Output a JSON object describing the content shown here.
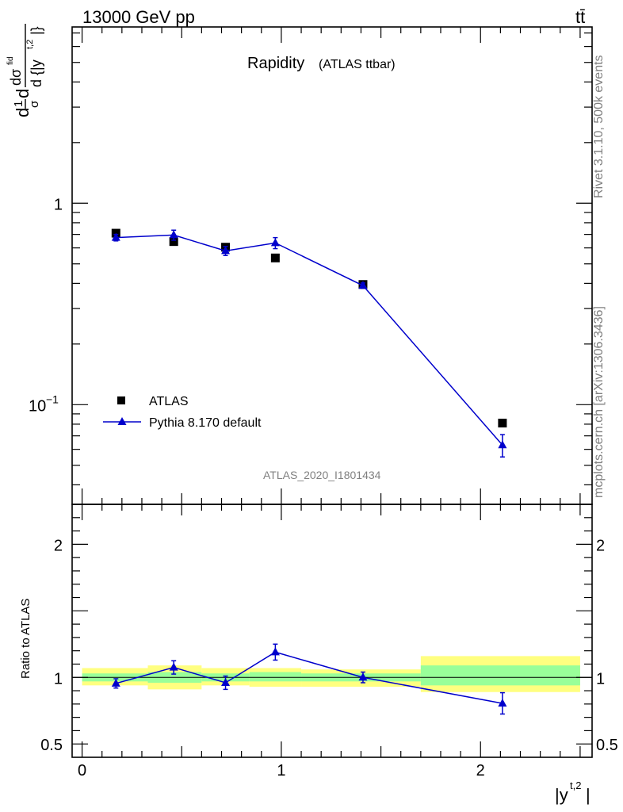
{
  "header": {
    "energy_label": "13000 GeV pp",
    "process_label": "tt̄"
  },
  "side_labels": {
    "rivet": "Rivet 3.1.10,  500k events",
    "url": "mcplots.cern.ch [arXiv:1306.3436]"
  },
  "colors": {
    "mc": "#0000cc",
    "band_outer": "#ffff80",
    "band_inner": "#99ff99",
    "data": "#000000",
    "grey_text": "#808080"
  },
  "chart_data": [
    {
      "type": "scatter",
      "panel": "main",
      "title": "Rapidity",
      "subtitle": "(ATLAS ttbar)",
      "ylabel_parts": [
        "d",
        "1",
        "σ",
        "d",
        "dσ",
        "fid",
        "d {|y",
        "t,2",
        "|}"
      ],
      "yscale": "log",
      "ylim": [
        0.032,
        7.5
      ],
      "xlim": [
        -0.05,
        2.56
      ],
      "ytick_labels": [
        {
          "value": 1,
          "label": "1"
        },
        {
          "value": 0.1,
          "label": "10",
          "exp": "−1"
        }
      ],
      "watermark": "ATLAS_2020_I1801434",
      "legend": {
        "position": "bottom-left",
        "data_label": "ATLAS",
        "mc_label": "Pythia 8.170 default"
      },
      "series": [
        {
          "name": "ATLAS",
          "x": [
            0.17,
            0.46,
            0.72,
            0.97,
            1.41,
            2.11
          ],
          "values": [
            0.71,
            0.645,
            0.605,
            0.535,
            0.395,
            0.081
          ]
        },
        {
          "name": "Pythia 8.170 default",
          "x": [
            0.17,
            0.46,
            0.72,
            0.97,
            1.41,
            2.11
          ],
          "values": [
            0.675,
            0.695,
            0.58,
            0.635,
            0.39,
            0.063
          ],
          "err_low": [
            0.025,
            0.04,
            0.03,
            0.04,
            0.012,
            0.008
          ],
          "err_high": [
            0.025,
            0.04,
            0.03,
            0.04,
            0.012,
            0.008
          ]
        }
      ]
    },
    {
      "type": "line",
      "panel": "ratio",
      "ylabel": "Ratio to ATLAS",
      "xlabel_parts": [
        "|y",
        "t,2",
        "|"
      ],
      "ylim": [
        0.4,
        2.3
      ],
      "xlim": [
        -0.05,
        2.56
      ],
      "xtick_labels": [
        {
          "value": 0,
          "label": "0"
        },
        {
          "value": 1,
          "label": "1"
        },
        {
          "value": 2,
          "label": "2"
        }
      ],
      "ytick_labels": [
        {
          "value": 0.5,
          "label": "0.5"
        },
        {
          "value": 1,
          "label": "1"
        },
        {
          "value": 2,
          "label": "2"
        }
      ],
      "bands": [
        {
          "x0": 0.0,
          "x1": 0.33,
          "outer": [
            0.94,
            1.07
          ],
          "inner": [
            0.97,
            1.03
          ]
        },
        {
          "x0": 0.33,
          "x1": 0.6,
          "outer": [
            0.91,
            1.09
          ],
          "inner": [
            0.96,
            1.04
          ]
        },
        {
          "x0": 0.6,
          "x1": 0.84,
          "outer": [
            0.94,
            1.07
          ],
          "inner": [
            0.97,
            1.03
          ]
        },
        {
          "x0": 0.84,
          "x1": 1.1,
          "outer": [
            0.93,
            1.07
          ],
          "inner": [
            0.97,
            1.04
          ]
        },
        {
          "x0": 1.1,
          "x1": 1.7,
          "outer": [
            0.93,
            1.06
          ],
          "inner": [
            0.97,
            1.03
          ]
        },
        {
          "x0": 1.7,
          "x1": 2.5,
          "outer": [
            0.89,
            1.16
          ],
          "inner": [
            0.94,
            1.09
          ]
        }
      ],
      "series": [
        {
          "name": "Pythia 8.170 default",
          "x": [
            0.17,
            0.46,
            0.72,
            0.97,
            1.41,
            2.11
          ],
          "values": [
            0.955,
            1.075,
            0.96,
            1.19,
            1.0,
            0.805
          ],
          "err_low": [
            0.035,
            0.05,
            0.05,
            0.06,
            0.04,
            0.08
          ],
          "err_high": [
            0.035,
            0.05,
            0.05,
            0.06,
            0.04,
            0.08
          ]
        }
      ]
    }
  ]
}
